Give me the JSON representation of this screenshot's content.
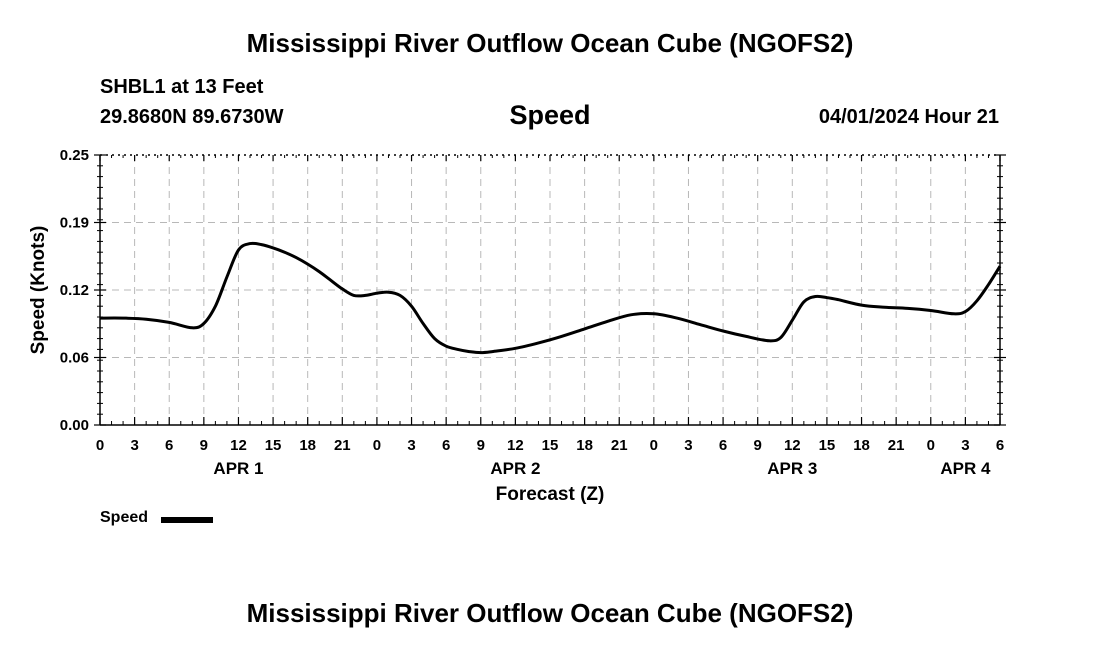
{
  "header": {
    "title": "Mississippi River Outflow Ocean Cube (NGOFS2)",
    "station": "SHBL1 at 13 Feet",
    "coordinates": "29.8680N  89.6730W",
    "parameter": "Speed",
    "datetime": "04/01/2024 Hour 21"
  },
  "footer": {
    "title": "Mississippi River Outflow Ocean Cube (NGOFS2)"
  },
  "legend": {
    "label": "Speed"
  },
  "chart_data": {
    "type": "line",
    "title": "Speed",
    "xlabel": "Forecast (Z)",
    "ylabel": "Speed (Knots)",
    "x_unit": "hours from APR 1 00Z",
    "xlim": [
      0,
      78
    ],
    "ylim": [
      0,
      0.25
    ],
    "yticks": [
      "0.00",
      "0.06",
      "0.12",
      "0.19",
      "0.25"
    ],
    "ytick_values": [
      0.0,
      0.0625,
      0.125,
      0.1875,
      0.25
    ],
    "xtick_hours": [
      0,
      3,
      6,
      9,
      12,
      15,
      18,
      21,
      24,
      27,
      30,
      33,
      36,
      39,
      42,
      45,
      48,
      51,
      54,
      57,
      60,
      63,
      66,
      69,
      72,
      75,
      78
    ],
    "xtick_labels": [
      "0",
      "3",
      "6",
      "9",
      "12",
      "15",
      "18",
      "21",
      "0",
      "3",
      "6",
      "9",
      "12",
      "15",
      "18",
      "21",
      "0",
      "3",
      "6",
      "9",
      "12",
      "15",
      "18",
      "21",
      "0",
      "3",
      "6"
    ],
    "day_labels": [
      {
        "label": "APR 1",
        "hour": 12
      },
      {
        "label": "APR 2",
        "hour": 36
      },
      {
        "label": "APR 3",
        "hour": 60
      },
      {
        "label": "APR 4",
        "hour": 75
      }
    ],
    "grid": true,
    "series": [
      {
        "name": "Speed",
        "x": [
          0,
          2,
          4,
          6,
          8,
          9,
          10,
          11,
          12,
          13,
          14,
          15,
          16,
          17,
          18,
          19,
          20,
          21,
          22,
          23,
          24,
          25,
          26,
          27,
          28,
          29,
          30,
          31,
          32,
          33,
          34,
          36,
          38,
          40,
          42,
          44,
          46,
          48,
          50,
          52,
          54,
          56,
          58,
          59,
          60,
          61,
          62,
          63,
          64,
          66,
          68,
          70,
          72,
          74,
          75,
          76,
          77,
          78
        ],
        "y": [
          0.099,
          0.099,
          0.098,
          0.095,
          0.09,
          0.094,
          0.11,
          0.137,
          0.162,
          0.168,
          0.167,
          0.164,
          0.16,
          0.155,
          0.149,
          0.142,
          0.134,
          0.126,
          0.12,
          0.12,
          0.122,
          0.123,
          0.12,
          0.11,
          0.094,
          0.08,
          0.073,
          0.07,
          0.068,
          0.067,
          0.068,
          0.071,
          0.076,
          0.082,
          0.089,
          0.096,
          0.102,
          0.103,
          0.099,
          0.093,
          0.087,
          0.082,
          0.078,
          0.081,
          0.097,
          0.114,
          0.119,
          0.118,
          0.116,
          0.111,
          0.109,
          0.108,
          0.106,
          0.103,
          0.105,
          0.115,
          0.13,
          0.147
        ]
      }
    ]
  }
}
